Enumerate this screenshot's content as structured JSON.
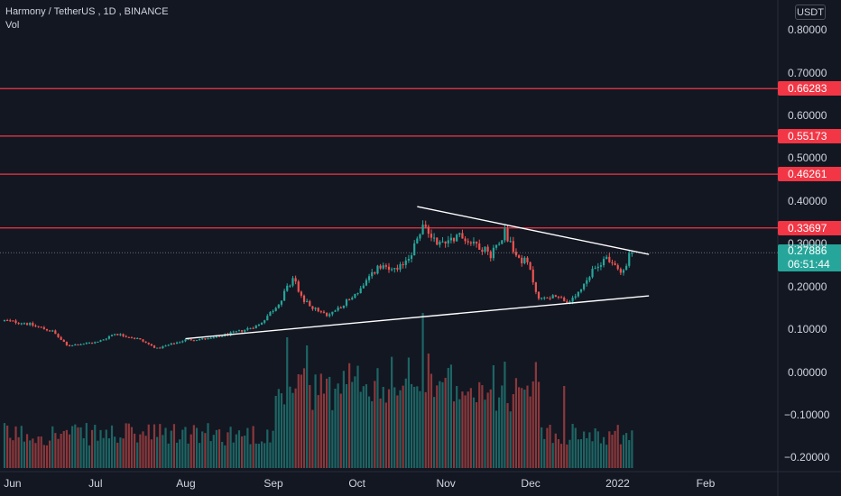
{
  "header": {
    "symbol": "Harmony / TetherUS",
    "interval": "1D",
    "exchange": "BINANCE",
    "vol_label": "Vol"
  },
  "currency_button": "USDT",
  "colors": {
    "background": "#131722",
    "up": "#26a69a",
    "down": "#ef5350",
    "level_line": "#f23645",
    "trendline": "#ffffff",
    "axis_text": "#d1d4dc"
  },
  "price_badge": {
    "price": "0.27886",
    "countdown": "06:51:44"
  },
  "chart_data": {
    "type": "candlestick",
    "title": "Harmony / TetherUS, 1D, BINANCE",
    "y_axis": {
      "ticks": [
        "0.80000",
        "0.70000",
        "0.60000",
        "0.50000",
        "0.40000",
        "0.30000",
        "0.20000",
        "0.10000",
        "0.00000",
        "−0.10000",
        "−0.20000"
      ],
      "ylim": [
        -0.29,
        0.87
      ]
    },
    "x_axis": {
      "ticks": [
        "Jun",
        "Jul",
        "Aug",
        "Sep",
        "Oct",
        "Nov",
        "Dec",
        "2022",
        "Feb"
      ],
      "start": "2021-05-29",
      "end": "2022-02-25"
    },
    "horizontal_levels": [
      "0.66283",
      "0.55173",
      "0.46261",
      "0.33697"
    ],
    "trendlines": [
      {
        "from": [
          "2021-10-22",
          0.387
        ],
        "to": [
          "2022-01-12",
          0.275
        ]
      },
      {
        "from": [
          "2021-08-01",
          0.078
        ],
        "to": [
          "2022-01-12",
          0.178
        ]
      }
    ],
    "last_price": 0.27886,
    "price_anchors": [
      [
        "2021-05-29",
        0.12
      ],
      [
        "2021-06-05",
        0.115
      ],
      [
        "2021-06-15",
        0.095
      ],
      [
        "2021-06-20",
        0.062
      ],
      [
        "2021-07-01",
        0.07
      ],
      [
        "2021-07-07",
        0.09
      ],
      [
        "2021-07-15",
        0.078
      ],
      [
        "2021-07-22",
        0.055
      ],
      [
        "2021-08-01",
        0.075
      ],
      [
        "2021-08-10",
        0.078
      ],
      [
        "2021-08-20",
        0.095
      ],
      [
        "2021-08-27",
        0.11
      ],
      [
        "2021-09-03",
        0.16
      ],
      [
        "2021-09-08",
        0.22
      ],
      [
        "2021-09-12",
        0.165
      ],
      [
        "2021-09-20",
        0.13
      ],
      [
        "2021-09-28",
        0.17
      ],
      [
        "2021-10-03",
        0.2
      ],
      [
        "2021-10-08",
        0.245
      ],
      [
        "2021-10-15",
        0.235
      ],
      [
        "2021-10-20",
        0.28
      ],
      [
        "2021-10-24",
        0.34
      ],
      [
        "2021-10-30",
        0.3
      ],
      [
        "2021-11-05",
        0.32
      ],
      [
        "2021-11-12",
        0.3
      ],
      [
        "2021-11-17",
        0.275
      ],
      [
        "2021-11-22",
        0.33
      ],
      [
        "2021-11-26",
        0.27
      ],
      [
        "2021-11-30",
        0.255
      ],
      [
        "2021-12-04",
        0.17
      ],
      [
        "2021-12-10",
        0.18
      ],
      [
        "2021-12-15",
        0.16
      ],
      [
        "2021-12-20",
        0.2
      ],
      [
        "2021-12-24",
        0.245
      ],
      [
        "2021-12-28",
        0.27
      ],
      [
        "2022-01-02",
        0.23
      ],
      [
        "2022-01-05",
        0.27
      ],
      [
        "2022-01-06",
        0.27886
      ]
    ],
    "volume_spikes": [
      [
        "2021-09-06",
        1.0
      ],
      [
        "2021-09-13",
        0.9
      ],
      [
        "2021-10-08",
        0.62
      ],
      [
        "2021-10-19",
        0.75
      ],
      [
        "2021-10-24",
        1.3
      ],
      [
        "2021-10-26",
        0.8
      ],
      [
        "2021-11-01",
        0.5
      ],
      [
        "2021-11-22",
        0.7
      ],
      [
        "2021-12-04",
        0.45
      ],
      [
        "2021-12-13",
        0.4
      ]
    ]
  }
}
